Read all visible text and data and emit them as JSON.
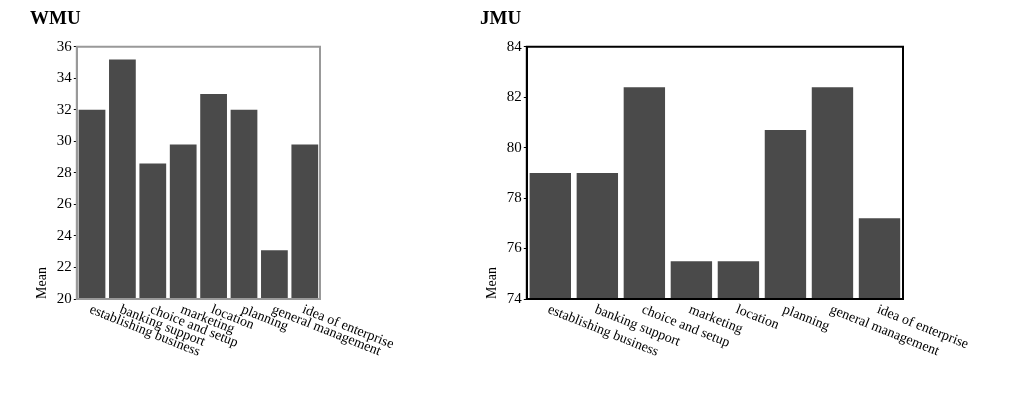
{
  "chart_data": [
    {
      "type": "bar",
      "title": "WMU",
      "ylabel": "Mean",
      "categories": [
        "establishing business",
        "banking support",
        "choice and setup",
        "marketing",
        "location",
        "planning",
        "general management",
        "idea of enterprise"
      ],
      "values": [
        32,
        35.2,
        28.6,
        29.8,
        33,
        32,
        23.1,
        29.8
      ],
      "color": "#4a4a4a",
      "ylim": [
        20,
        36
      ],
      "yticks": [
        20,
        22,
        24,
        26,
        28,
        30,
        32,
        34,
        36
      ],
      "grid": false
    },
    {
      "type": "bar",
      "title": "JMU",
      "ylabel": "Mean",
      "categories": [
        "establishing business",
        "banking support",
        "choice and setup",
        "marketing",
        "location",
        "planning",
        "general management",
        "idea of enterprise"
      ],
      "values": [
        79,
        79,
        82.4,
        75.5,
        75.5,
        80.7,
        82.4,
        77.2
      ],
      "color": "#4a4a4a",
      "ylim": [
        74,
        84
      ],
      "yticks": [
        74,
        76,
        78,
        80,
        82,
        84
      ],
      "grid": false
    }
  ]
}
